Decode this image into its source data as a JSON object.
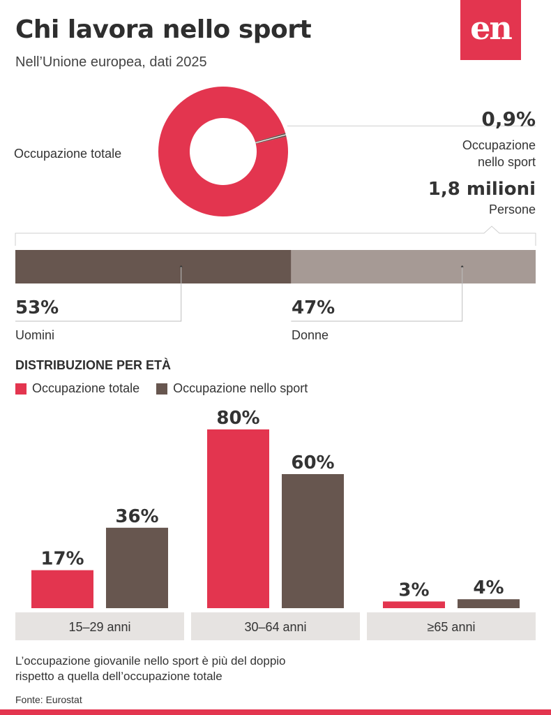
{
  "header": {
    "title": "Chi lavora nello sport",
    "subtitle": "Nell’Unione europea, dati 2025",
    "logo_text": "en"
  },
  "colors": {
    "red": "#e3354f",
    "dark": "#67564f",
    "light": "#a69a95",
    "band": "#e6e3e1"
  },
  "donut": {
    "label": "Occupazione totale",
    "sport_share_pct": 0.9,
    "sport_pct_label": "0,9%",
    "sport_desc_line1": "Occupazione",
    "sport_desc_line2": "nello sport",
    "persons_value": "1,8 milioni",
    "persons_label": "Persone"
  },
  "gender": {
    "men_pct": 53,
    "men_pct_label": "53%",
    "men_label": "Uomini",
    "women_pct": 47,
    "women_pct_label": "47%",
    "women_label": "Donne"
  },
  "age": {
    "section_title": "DISTRIBUZIONE PER ETÀ",
    "legend_total": "Occupazione totale",
    "legend_sport": "Occupazione nello sport"
  },
  "chart_data": {
    "type": "bar",
    "title": "DISTRIBUZIONE PER ETÀ",
    "categories": [
      "15–29 anni",
      "30–64 anni",
      "≥65 anni"
    ],
    "series": [
      {
        "name": "Occupazione totale",
        "values": [
          17,
          80,
          3
        ],
        "labels": [
          "17%",
          "80%",
          "3%"
        ]
      },
      {
        "name": "Occupazione nello sport",
        "values": [
          36,
          60,
          4
        ],
        "labels": [
          "36%",
          "60%",
          "4%"
        ]
      }
    ],
    "ylim": [
      0,
      80
    ]
  },
  "footer": {
    "note_line1": "L’occupazione giovanile nello sport è più del doppio",
    "note_line2": "rispetto a quella dell’occupazione totale",
    "source": "Fonte: Eurostat"
  }
}
